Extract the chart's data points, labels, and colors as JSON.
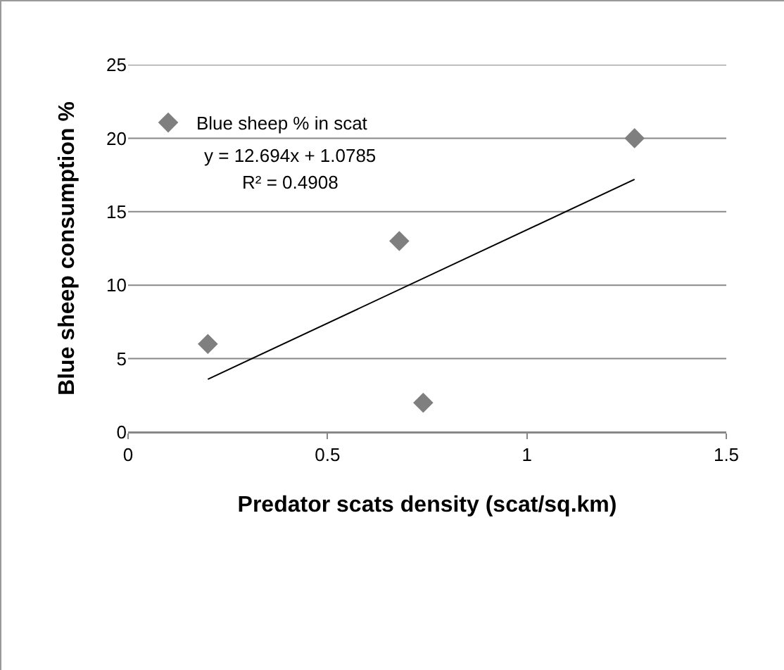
{
  "chart_data": {
    "type": "scatter",
    "xlabel": "Predator scats density (scat/sq.km)",
    "ylabel": "Blue sheep consumption %",
    "series": [
      {
        "name": "Blue sheep % in scat",
        "type": "scatter",
        "color": "#7f7f7f",
        "marker": "diamond",
        "x": [
          0.2,
          0.68,
          0.74,
          1.27
        ],
        "values": [
          6,
          13,
          2,
          20
        ]
      },
      {
        "type": "line",
        "color": "#000000",
        "marker": "none",
        "line_style": "solid",
        "x": [
          0.2,
          1.27
        ],
        "values": [
          3.6,
          17.2
        ]
      }
    ],
    "annotations": [
      "y = 12.694x + 1.0785",
      "R² = 0.4908"
    ],
    "xlim": [
      0,
      1.5
    ],
    "xticks": [
      0,
      0.5,
      1,
      1.5
    ],
    "ylim": [
      0,
      25
    ],
    "yticks": [
      0,
      5,
      10,
      15,
      20,
      25
    ],
    "grid": "y",
    "legend": "top left"
  }
}
